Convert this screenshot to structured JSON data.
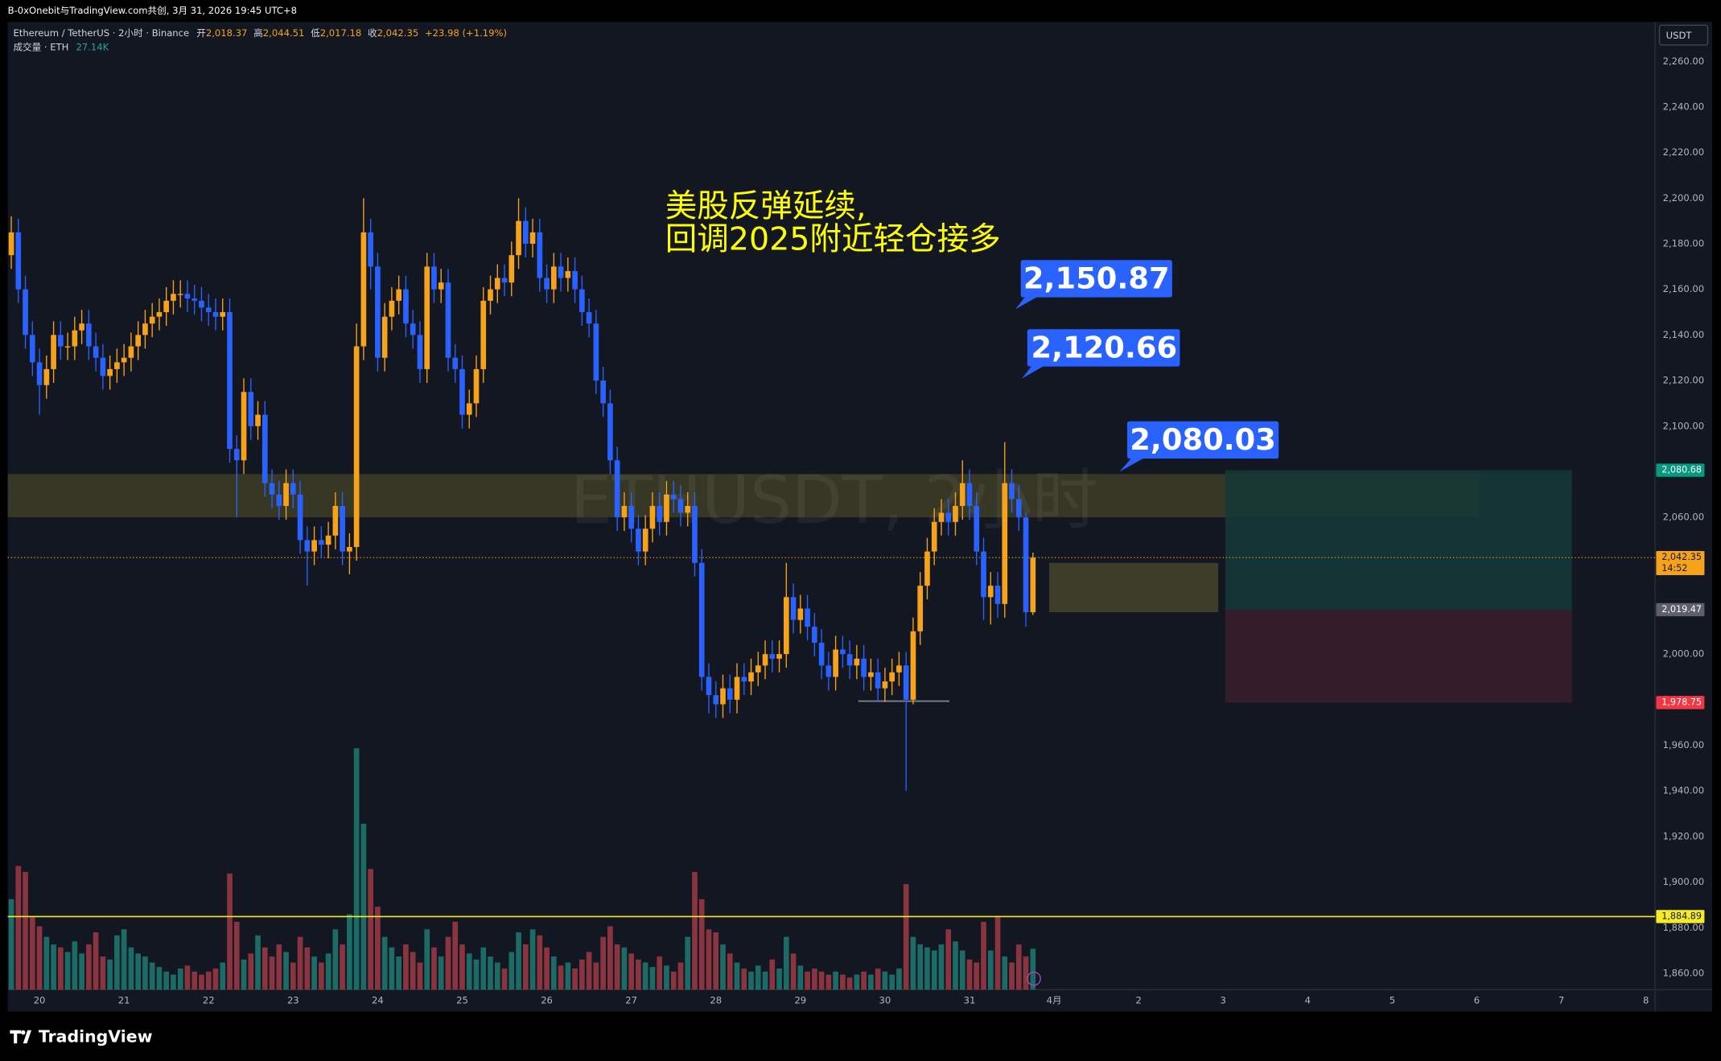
{
  "header": {
    "title": "B-0xOnebit与TradingView.com共创, 3月 31, 2026 19:45 UTC+8",
    "currency": "USDT",
    "footer": "TradingView"
  },
  "legend": {
    "symbol": "Ethereum / TetherUS · 2小时 · Binance",
    "items": [
      {
        "label": "开",
        "value": "2,018.37"
      },
      {
        "label": "高",
        "value": "2,044.51"
      },
      {
        "label": "低",
        "value": "2,017.18"
      },
      {
        "label": "收",
        "value": "2,042.35"
      }
    ],
    "change": "+23.98 (+1.19%)",
    "volume_name": "成交量 · ETH",
    "volume_value": "27.14K"
  },
  "chart_data": {
    "type": "candlestick",
    "watermark": "ETHUSDT, 2小时",
    "note": [
      "美股反弹延续,",
      "回调2025附近轻仓接多"
    ],
    "annotations": [
      {
        "text": "2,150.87"
      },
      {
        "text": "2,120.66"
      },
      {
        "text": "2,080.03"
      }
    ],
    "up_color": "#f7a21b",
    "down_color": "#2962ff",
    "volume_up_color": "#1c6b66",
    "volume_down_color": "#8a3440",
    "xlim": [
      -0.5,
      233.3
    ],
    "xticks": [
      {
        "value": 4,
        "label": "20"
      },
      {
        "value": 16,
        "label": "21"
      },
      {
        "value": 28,
        "label": "22"
      },
      {
        "value": 40,
        "label": "23"
      },
      {
        "value": 52,
        "label": "24"
      },
      {
        "value": 64,
        "label": "25"
      },
      {
        "value": 76,
        "label": "26"
      },
      {
        "value": 88,
        "label": "27"
      },
      {
        "value": 100,
        "label": "28"
      },
      {
        "value": 112,
        "label": "29"
      },
      {
        "value": 124,
        "label": "30"
      },
      {
        "value": 136,
        "label": "31"
      },
      {
        "value": 148,
        "label": "4月"
      },
      {
        "value": 160,
        "label": "2"
      },
      {
        "value": 172,
        "label": "3"
      },
      {
        "value": 184,
        "label": "4"
      },
      {
        "value": 196,
        "label": "5"
      },
      {
        "value": 208,
        "label": "6"
      },
      {
        "value": 220,
        "label": "7"
      },
      {
        "value": 232,
        "label": "8"
      }
    ],
    "ylim": [
      1852.8,
      2277.3
    ],
    "yticks": [
      {
        "value": 1860,
        "label": "1,860.00"
      },
      {
        "value": 1880,
        "label": "1,880.00"
      },
      {
        "value": 1900,
        "label": "1,900.00"
      },
      {
        "value": 1920,
        "label": "1,920.00"
      },
      {
        "value": 1940,
        "label": "1,940.00"
      },
      {
        "value": 1960,
        "label": "1,960.00"
      },
      {
        "value": 1980,
        "label": "1,980.00"
      },
      {
        "value": 2000,
        "label": "2,000.00"
      },
      {
        "value": 2020,
        "label": "2,020.00"
      },
      {
        "value": 2040,
        "label": "2,040.00"
      },
      {
        "value": 2060,
        "label": "2,060.00"
      },
      {
        "value": 2080,
        "label": "2,080.00"
      },
      {
        "value": 2100,
        "label": "2,100.00"
      },
      {
        "value": 2120,
        "label": "2,120.00"
      },
      {
        "value": 2140,
        "label": "2,140.00"
      },
      {
        "value": 2160,
        "label": "2,160.00"
      },
      {
        "value": 2180,
        "label": "2,180.00"
      },
      {
        "value": 2200,
        "label": "2,200.00"
      },
      {
        "value": 2220,
        "label": "2,220.00"
      },
      {
        "value": 2240,
        "label": "2,240.00"
      },
      {
        "value": 2260,
        "label": "2,260.00"
      }
    ],
    "zones": [
      {
        "from": -0.5,
        "to": 208.4,
        "top": 2079,
        "bottom": 2060,
        "color": "#3d3d24"
      },
      {
        "from": 147.3,
        "to": 171.3,
        "top": 2040,
        "bottom": 2018.4,
        "color": "#45442a"
      },
      {
        "from": 172.3,
        "to": 221.5,
        "top": 2080.68,
        "bottom": 2019.47,
        "color": "#143837"
      },
      {
        "from": 172.3,
        "to": 221.5,
        "top": 2019.47,
        "bottom": 1978.75,
        "color": "#3a1f2b"
      }
    ],
    "price_lines": [
      {
        "value": 2080.68,
        "label": "2,080.68",
        "color": "#089981"
      },
      {
        "value": 2042.35,
        "label": "2,042.35",
        "countdown": "14:52",
        "color": "#f7a21b",
        "line": "dotted"
      },
      {
        "value": 2019.47,
        "label": "2,019.47",
        "color": "#5d606b"
      },
      {
        "value": 1978.75,
        "label": "1,978.75",
        "color": "#f23645"
      },
      {
        "value": 1884.89,
        "label": "1,884.89",
        "color": "#f5eb28",
        "line": "solid"
      }
    ],
    "open": [
      2175,
      2185,
      2160,
      2140,
      2128,
      2118,
      2125,
      2140,
      2135,
      2135,
      2142,
      2145,
      2135,
      2130,
      2122,
      2125,
      2128,
      2130,
      2135,
      2140,
      2145,
      2148,
      2150,
      2155,
      2158,
      2158,
      2156,
      2155,
      2152,
      2150,
      2148,
      2150,
      2090,
      2085,
      2115,
      2100,
      2105,
      2075,
      2070,
      2065,
      2075,
      2070,
      2050,
      2045,
      2050,
      2048,
      2052,
      2065,
      2045,
      2047,
      2135,
      2185,
      2170,
      2130,
      2148,
      2155,
      2160,
      2145,
      2140,
      2125,
      2170,
      2160,
      2163,
      2130,
      2125,
      2105,
      2110,
      2125,
      2155,
      2160,
      2165,
      2163,
      2175,
      2190,
      2180,
      2185,
      2165,
      2160,
      2170,
      2165,
      2168,
      2160,
      2150,
      2145,
      2120,
      2110,
      2085,
      2060,
      2065,
      2055,
      2045,
      2055,
      2065,
      2058,
      2070,
      2068,
      2062,
      2065,
      2040,
      1990,
      1982,
      1978,
      1985,
      1980,
      1990,
      1988,
      1992,
      1995,
      2000,
      1998,
      2000,
      2025,
      2015,
      2020,
      2012,
      2005,
      1995,
      1990,
      2002,
      2000,
      1995,
      1998,
      1990,
      1992,
      1985,
      1988,
      1992,
      1995,
      1980,
      2010,
      2030,
      2045,
      2058,
      2062,
      2058,
      2065,
      2075,
      2065,
      2045,
      2025,
      2030,
      2022,
      2075,
      2068,
      2060,
      2018.37
    ],
    "high": [
      2192,
      2191,
      2166,
      2146,
      2134,
      2131,
      2146,
      2146,
      2141,
      2148,
      2151,
      2151,
      2141,
      2136,
      2131,
      2134,
      2136,
      2141,
      2146,
      2151,
      2154,
      2156,
      2161,
      2164,
      2164,
      2164,
      2162,
      2161,
      2158,
      2156,
      2156,
      2156,
      2096,
      2121,
      2121,
      2111,
      2111,
      2081,
      2076,
      2081,
      2081,
      2076,
      2056,
      2056,
      2056,
      2058,
      2071,
      2071,
      2053,
      2145,
      2200,
      2191,
      2176,
      2154,
      2161,
      2166,
      2166,
      2151,
      2146,
      2176,
      2176,
      2169,
      2169,
      2136,
      2131,
      2116,
      2131,
      2161,
      2166,
      2171,
      2171,
      2181,
      2200,
      2196,
      2191,
      2191,
      2171,
      2176,
      2176,
      2174,
      2174,
      2166,
      2156,
      2151,
      2126,
      2116,
      2091,
      2071,
      2071,
      2061,
      2061,
      2071,
      2071,
      2076,
      2076,
      2074,
      2071,
      2071,
      2046,
      1996,
      1988,
      1991,
      1991,
      1996,
      1996,
      1998,
      2001,
      2006,
      2006,
      2006,
      2040,
      2031,
      2026,
      2026,
      2018,
      2011,
      2001,
      2008,
      2008,
      2006,
      2004,
      2004,
      1998,
      1998,
      1994,
      1998,
      2001,
      2001,
      2016,
      2036,
      2051,
      2064,
      2068,
      2068,
      2071,
      2085,
      2081,
      2071,
      2051,
      2036,
      2036,
      2093,
      2081,
      2074,
      2062,
      2044.51
    ],
    "low": [
      2169,
      2154,
      2134,
      2122,
      2105,
      2112,
      2119,
      2129,
      2129,
      2129,
      2136,
      2129,
      2124,
      2116,
      2116,
      2119,
      2122,
      2124,
      2129,
      2134,
      2139,
      2142,
      2144,
      2149,
      2152,
      2150,
      2149,
      2146,
      2144,
      2142,
      2142,
      2084,
      2060,
      2079,
      2094,
      2094,
      2069,
      2064,
      2059,
      2059,
      2064,
      2044,
      2030,
      2039,
      2042,
      2042,
      2046,
      2039,
      2035,
      2041,
      2129,
      2160,
      2124,
      2124,
      2142,
      2149,
      2139,
      2134,
      2119,
      2119,
      2154,
      2154,
      2124,
      2119,
      2099,
      2099,
      2104,
      2119,
      2149,
      2154,
      2157,
      2157,
      2169,
      2174,
      2174,
      2159,
      2154,
      2154,
      2159,
      2159,
      2154,
      2144,
      2139,
      2114,
      2104,
      2079,
      2054,
      2054,
      2049,
      2039,
      2039,
      2049,
      2052,
      2052,
      2062,
      2056,
      2056,
      2034,
      1984,
      1974,
      1972,
      1972,
      1974,
      1974,
      1982,
      1982,
      1986,
      1989,
      1992,
      1992,
      1994,
      2009,
      2009,
      2006,
      1999,
      1989,
      1984,
      1984,
      1994,
      1989,
      1989,
      1984,
      1984,
      1979,
      1979,
      1982,
      1986,
      1940,
      1978,
      2004,
      2024,
      2039,
      2052,
      2052,
      2052,
      2059,
      2059,
      2039,
      2015,
      2013,
      2016,
      2016,
      2062,
      2054,
      2012,
      2017.18
    ],
    "close": [
      2185,
      2160,
      2140,
      2128,
      2118,
      2125,
      2140,
      2135,
      2135,
      2142,
      2145,
      2135,
      2130,
      2122,
      2125,
      2128,
      2130,
      2135,
      2140,
      2145,
      2148,
      2150,
      2155,
      2158,
      2158,
      2156,
      2155,
      2152,
      2150,
      2148,
      2150,
      2090,
      2085,
      2115,
      2100,
      2105,
      2075,
      2070,
      2065,
      2075,
      2070,
      2050,
      2045,
      2050,
      2048,
      2052,
      2065,
      2045,
      2047,
      2135,
      2185,
      2170,
      2130,
      2148,
      2155,
      2160,
      2145,
      2140,
      2125,
      2170,
      2160,
      2163,
      2130,
      2125,
      2105,
      2110,
      2125,
      2155,
      2160,
      2165,
      2163,
      2175,
      2190,
      2180,
      2185,
      2165,
      2160,
      2170,
      2165,
      2168,
      2160,
      2150,
      2145,
      2120,
      2110,
      2085,
      2060,
      2065,
      2055,
      2045,
      2055,
      2065,
      2058,
      2070,
      2068,
      2062,
      2065,
      2040,
      1990,
      1982,
      1978,
      1985,
      1980,
      1990,
      1988,
      1992,
      1995,
      2000,
      1998,
      2000,
      2025,
      2015,
      2020,
      2012,
      2005,
      1995,
      1990,
      2002,
      2000,
      1995,
      1998,
      1990,
      1992,
      1985,
      1988,
      1992,
      1995,
      1980,
      2010,
      2030,
      2045,
      2058,
      2062,
      2058,
      2065,
      2075,
      2065,
      2045,
      2025,
      2030,
      2022,
      2075,
      2068,
      2060,
      2018.37,
      2042.35
    ],
    "volume": [
      60000,
      82000,
      78000,
      48000,
      42000,
      35000,
      30000,
      28000,
      25000,
      32000,
      24000,
      30000,
      38000,
      22000,
      20000,
      36000,
      40000,
      28000,
      24000,
      22000,
      18000,
      15000,
      12000,
      10000,
      14000,
      16000,
      12000,
      10000,
      12000,
      14000,
      18000,
      77000,
      45000,
      20000,
      24000,
      36000,
      28000,
      22000,
      30000,
      25000,
      18000,
      35000,
      28000,
      22000,
      18000,
      24000,
      40000,
      30000,
      50000,
      160000,
      110000,
      80000,
      55000,
      35000,
      28000,
      22000,
      30000,
      25000,
      18000,
      40000,
      28000,
      22000,
      35000,
      45000,
      30000,
      24000,
      20000,
      28000,
      22000,
      18000,
      14000,
      25000,
      38000,
      30000,
      40000,
      36000,
      28000,
      22000,
      16000,
      18000,
      14000,
      20000,
      25000,
      18000,
      35000,
      42000,
      30000,
      28000,
      24000,
      20000,
      18000,
      15000,
      22000,
      16000,
      12000,
      18000,
      35000,
      78000,
      60000,
      40000,
      38000,
      30000,
      24000,
      18000,
      14000,
      12000,
      16000,
      12000,
      20000,
      14000,
      35000,
      24000,
      16000,
      12000,
      14000,
      12000,
      10000,
      12000,
      10000,
      8000,
      10000,
      12000,
      10000,
      14000,
      12000,
      10000,
      14000,
      70000,
      35000,
      30000,
      28000,
      26000,
      30000,
      40000,
      32000,
      26000,
      20000,
      18000,
      45000,
      26000,
      48000,
      22000,
      18000,
      30000,
      22000,
      27140
    ]
  }
}
